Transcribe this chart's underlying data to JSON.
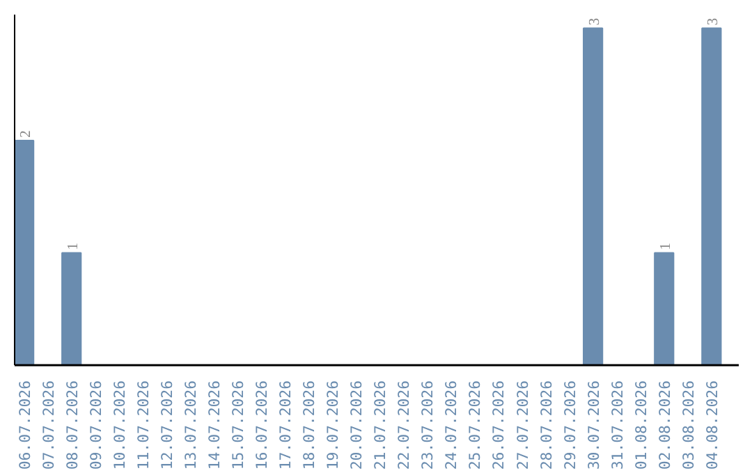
{
  "chart_data": {
    "type": "bar",
    "categories": [
      "06.07.2026",
      "07.07.2026",
      "08.07.2026",
      "09.07.2026",
      "10.07.2026",
      "11.07.2026",
      "12.07.2026",
      "13.07.2026",
      "14.07.2026",
      "15.07.2026",
      "16.07.2026",
      "17.07.2026",
      "18.07.2026",
      "19.07.2026",
      "20.07.2026",
      "21.07.2026",
      "22.07.2026",
      "23.07.2026",
      "24.07.2026",
      "25.07.2026",
      "26.07.2026",
      "27.07.2026",
      "28.07.2026",
      "29.07.2026",
      "30.07.2026",
      "31.07.2026",
      "01.08.2026",
      "02.08.2026",
      "03.08.2026",
      "04.08.2026"
    ],
    "values": [
      2,
      0,
      1,
      0,
      0,
      0,
      0,
      0,
      0,
      0,
      0,
      0,
      0,
      0,
      0,
      0,
      0,
      0,
      0,
      0,
      0,
      0,
      0,
      0,
      3,
      0,
      0,
      1,
      0,
      3
    ],
    "value_labels": [
      "2",
      null,
      "1",
      null,
      null,
      null,
      null,
      null,
      null,
      null,
      null,
      null,
      null,
      null,
      null,
      null,
      null,
      null,
      null,
      null,
      null,
      null,
      null,
      null,
      "3",
      null,
      null,
      "1",
      null,
      "3"
    ],
    "color": "#6a8caf",
    "grid": false
  }
}
